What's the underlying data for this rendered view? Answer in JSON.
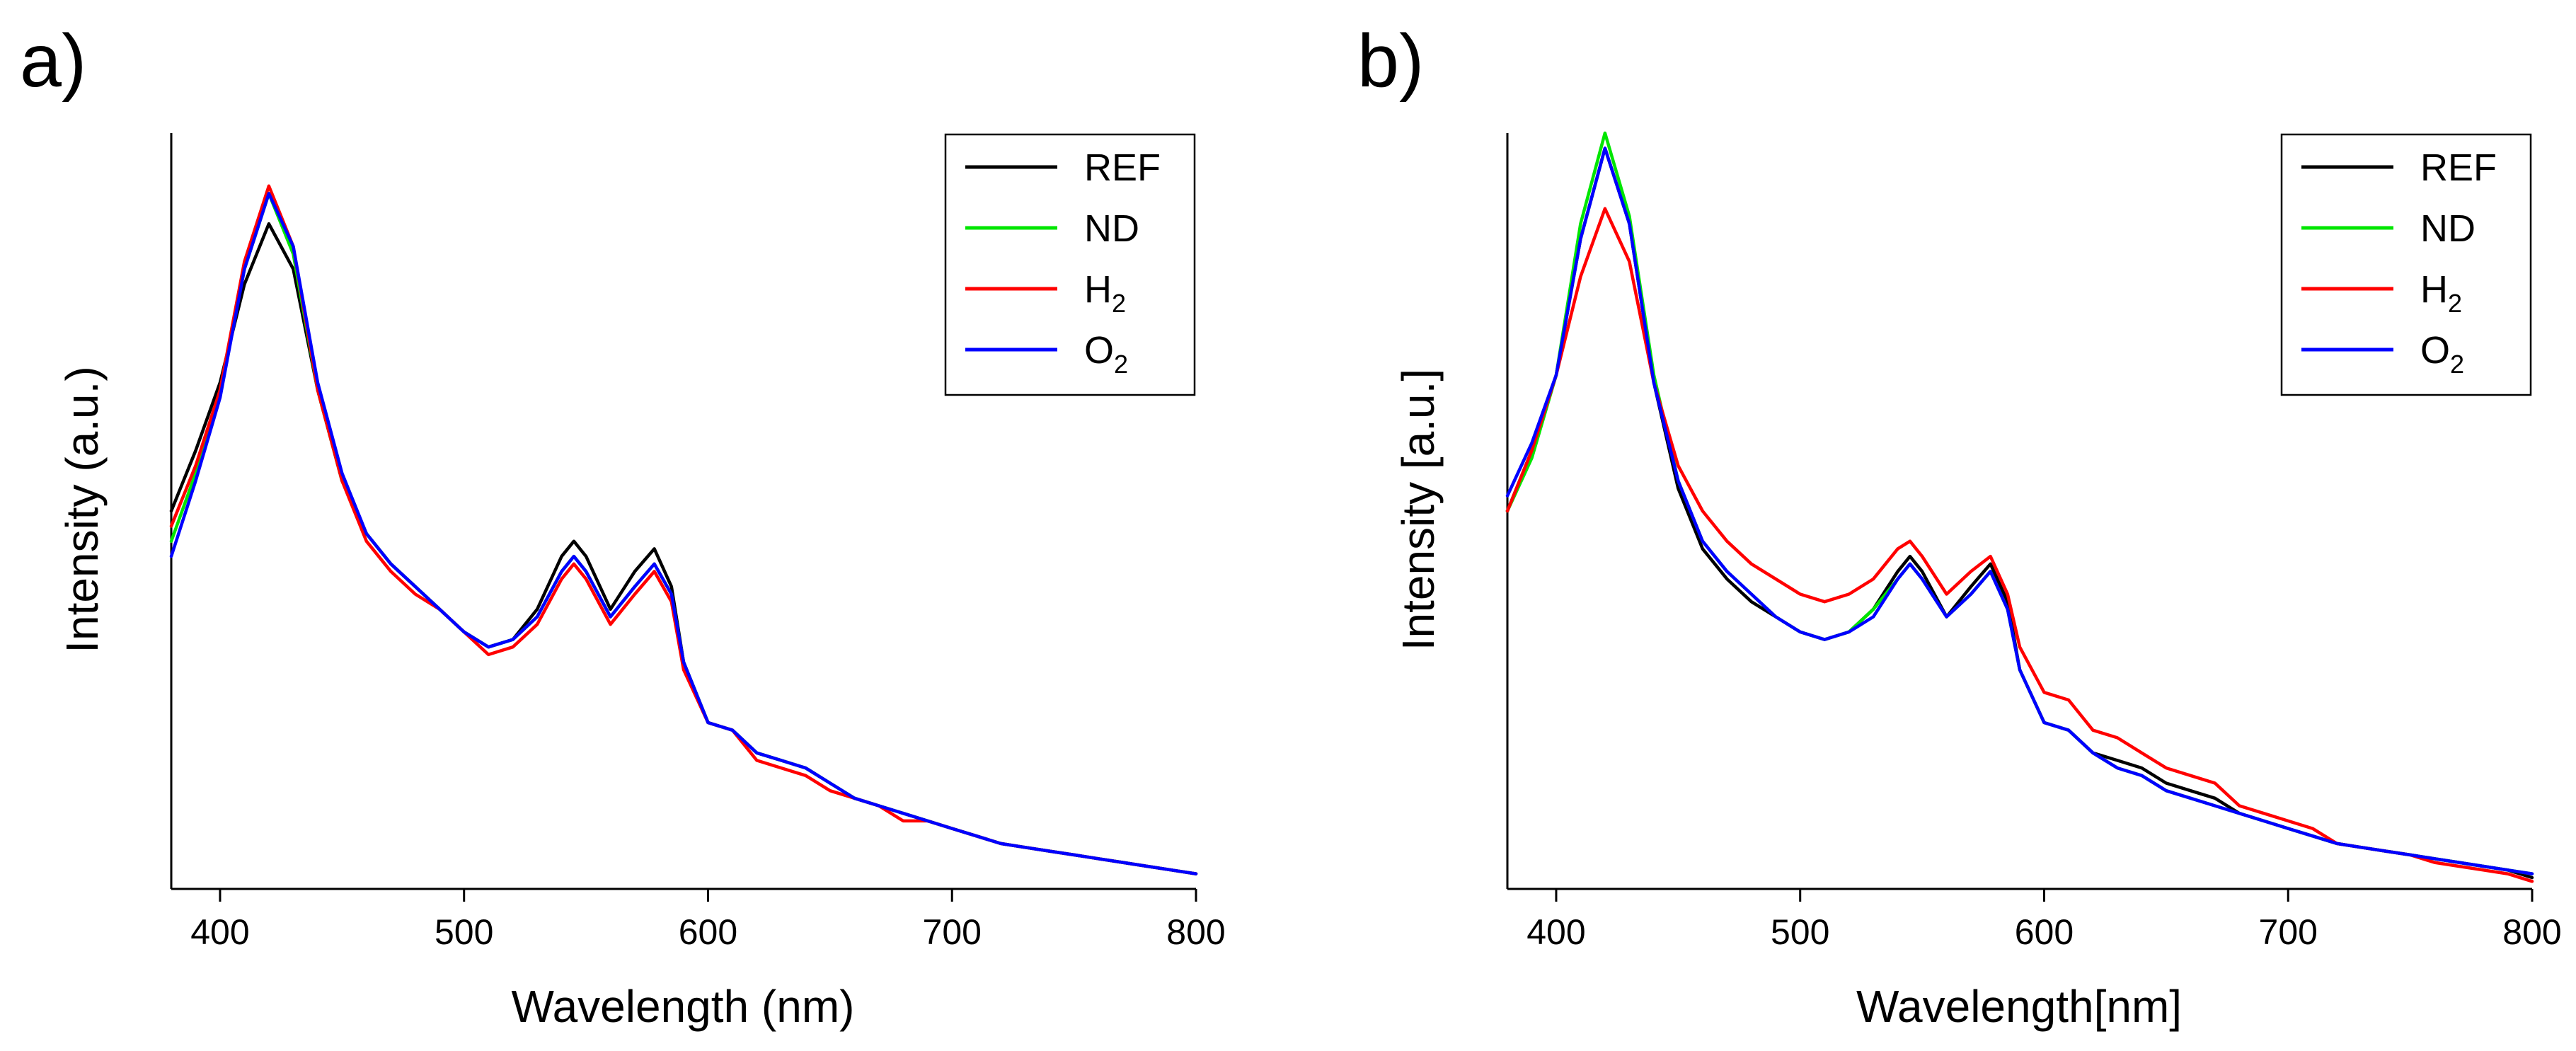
{
  "chart_data": [
    {
      "panel_label": "a)",
      "type": "line",
      "title": "",
      "xlabel": "Wavelength (nm)",
      "ylabel": "Intensity (a.u.)",
      "xlim": [
        380,
        800
      ],
      "ylim": [
        0,
        1
      ],
      "xticks": [
        400,
        500,
        600,
        700,
        800
      ],
      "legend_position": "top-right",
      "series": [
        {
          "name": "REF",
          "name_main": "REF",
          "name_sub": "",
          "color": "#000000",
          "x": [
            380,
            390,
            400,
            410,
            420,
            430,
            440,
            450,
            460,
            470,
            480,
            490,
            500,
            510,
            520,
            530,
            540,
            545,
            550,
            560,
            570,
            578,
            585,
            590,
            600,
            610,
            620,
            630,
            640,
            650,
            660,
            670,
            680,
            690,
            700,
            710,
            720,
            730,
            740,
            750,
            760,
            770,
            780,
            790,
            800
          ],
          "y": [
            0.5,
            0.58,
            0.67,
            0.8,
            0.88,
            0.82,
            0.66,
            0.54,
            0.47,
            0.43,
            0.4,
            0.37,
            0.34,
            0.32,
            0.33,
            0.37,
            0.44,
            0.46,
            0.44,
            0.37,
            0.42,
            0.45,
            0.4,
            0.3,
            0.22,
            0.21,
            0.18,
            0.17,
            0.16,
            0.14,
            0.12,
            0.11,
            0.1,
            0.09,
            0.08,
            0.07,
            0.06,
            0.055,
            0.05,
            0.045,
            0.04,
            0.035,
            0.03,
            0.025,
            0.02
          ]
        },
        {
          "name": "ND",
          "name_main": "ND",
          "name_sub": "",
          "color": "#00e600",
          "x": [
            380,
            390,
            400,
            410,
            420,
            430,
            440,
            450,
            460,
            470,
            480,
            490,
            500,
            510,
            520,
            530,
            540,
            545,
            550,
            560,
            570,
            578,
            585,
            590,
            600,
            610,
            620,
            630,
            640,
            650,
            660,
            670,
            680,
            690,
            700,
            710,
            720,
            730,
            740,
            750,
            760,
            770,
            780,
            790,
            800
          ],
          "y": [
            0.46,
            0.55,
            0.66,
            0.82,
            0.92,
            0.84,
            0.66,
            0.54,
            0.47,
            0.43,
            0.4,
            0.37,
            0.34,
            0.32,
            0.33,
            0.36,
            0.42,
            0.44,
            0.42,
            0.36,
            0.4,
            0.43,
            0.39,
            0.3,
            0.22,
            0.21,
            0.18,
            0.17,
            0.16,
            0.14,
            0.12,
            0.11,
            0.1,
            0.09,
            0.08,
            0.07,
            0.06,
            0.055,
            0.05,
            0.045,
            0.04,
            0.035,
            0.03,
            0.025,
            0.02
          ]
        },
        {
          "name": "H2",
          "name_main": "H",
          "name_sub": "2",
          "color": "#ff0000",
          "x": [
            380,
            390,
            400,
            410,
            420,
            430,
            440,
            450,
            460,
            470,
            480,
            490,
            500,
            510,
            520,
            530,
            540,
            545,
            550,
            560,
            570,
            578,
            585,
            590,
            600,
            610,
            620,
            630,
            640,
            650,
            660,
            670,
            680,
            690,
            700,
            710,
            720,
            730,
            740,
            750,
            760,
            770,
            780,
            790,
            800
          ],
          "y": [
            0.48,
            0.56,
            0.66,
            0.83,
            0.93,
            0.85,
            0.66,
            0.54,
            0.46,
            0.42,
            0.39,
            0.37,
            0.34,
            0.31,
            0.32,
            0.35,
            0.41,
            0.43,
            0.41,
            0.35,
            0.39,
            0.42,
            0.38,
            0.29,
            0.22,
            0.21,
            0.17,
            0.16,
            0.15,
            0.13,
            0.12,
            0.11,
            0.09,
            0.09,
            0.08,
            0.07,
            0.06,
            0.055,
            0.05,
            0.045,
            0.04,
            0.035,
            0.03,
            0.025,
            0.02
          ]
        },
        {
          "name": "O2",
          "name_main": "O",
          "name_sub": "2",
          "color": "#0000ff",
          "x": [
            380,
            390,
            400,
            410,
            420,
            430,
            440,
            450,
            460,
            470,
            480,
            490,
            500,
            510,
            520,
            530,
            540,
            545,
            550,
            560,
            570,
            578,
            585,
            590,
            600,
            610,
            620,
            630,
            640,
            650,
            660,
            670,
            680,
            690,
            700,
            710,
            720,
            730,
            740,
            750,
            760,
            770,
            780,
            790,
            800
          ],
          "y": [
            0.44,
            0.54,
            0.65,
            0.82,
            0.92,
            0.85,
            0.67,
            0.55,
            0.47,
            0.43,
            0.4,
            0.37,
            0.34,
            0.32,
            0.33,
            0.36,
            0.42,
            0.44,
            0.42,
            0.36,
            0.4,
            0.43,
            0.39,
            0.3,
            0.22,
            0.21,
            0.18,
            0.17,
            0.16,
            0.14,
            0.12,
            0.11,
            0.1,
            0.09,
            0.08,
            0.07,
            0.06,
            0.055,
            0.05,
            0.045,
            0.04,
            0.035,
            0.03,
            0.025,
            0.02
          ]
        }
      ]
    },
    {
      "panel_label": "b)",
      "type": "line",
      "title": "",
      "xlabel": "Wavelength[nm]",
      "ylabel": "Intensity [a.u.]",
      "xlim": [
        380,
        800
      ],
      "ylim": [
        0,
        1
      ],
      "xticks": [
        400,
        500,
        600,
        700,
        800
      ],
      "legend_position": "top-right",
      "series": [
        {
          "name": "REF",
          "name_main": "REF",
          "name_sub": "",
          "color": "#000000",
          "x": [
            380,
            390,
            400,
            410,
            420,
            430,
            440,
            450,
            460,
            470,
            480,
            490,
            500,
            510,
            520,
            530,
            540,
            545,
            550,
            560,
            570,
            578,
            585,
            590,
            600,
            610,
            620,
            630,
            640,
            650,
            660,
            670,
            680,
            690,
            700,
            710,
            720,
            730,
            740,
            750,
            760,
            770,
            780,
            790,
            800
          ],
          "y": [
            0.5,
            0.58,
            0.68,
            0.86,
            0.98,
            0.88,
            0.67,
            0.53,
            0.45,
            0.41,
            0.38,
            0.36,
            0.34,
            0.33,
            0.34,
            0.37,
            0.42,
            0.44,
            0.42,
            0.36,
            0.4,
            0.43,
            0.38,
            0.29,
            0.22,
            0.21,
            0.18,
            0.17,
            0.16,
            0.14,
            0.13,
            0.12,
            0.1,
            0.09,
            0.08,
            0.07,
            0.06,
            0.055,
            0.05,
            0.045,
            0.04,
            0.035,
            0.03,
            0.025,
            0.015
          ]
        },
        {
          "name": "ND",
          "name_main": "ND",
          "name_sub": "",
          "color": "#00e600",
          "x": [
            380,
            390,
            400,
            410,
            420,
            430,
            440,
            450,
            460,
            470,
            480,
            490,
            500,
            510,
            520,
            530,
            540,
            545,
            550,
            560,
            570,
            578,
            585,
            590,
            600,
            610,
            620,
            630,
            640,
            650,
            660,
            670,
            680,
            690,
            700,
            710,
            720,
            730,
            740,
            750,
            760,
            770,
            780,
            790,
            800
          ],
          "y": [
            0.5,
            0.57,
            0.68,
            0.88,
            1.0,
            0.89,
            0.68,
            0.54,
            0.46,
            0.42,
            0.39,
            0.36,
            0.34,
            0.33,
            0.34,
            0.37,
            0.41,
            0.43,
            0.41,
            0.36,
            0.39,
            0.42,
            0.37,
            0.29,
            0.22,
            0.21,
            0.18,
            0.16,
            0.15,
            0.13,
            0.12,
            0.11,
            0.1,
            0.09,
            0.08,
            0.07,
            0.06,
            0.055,
            0.05,
            0.045,
            0.04,
            0.035,
            0.03,
            0.025,
            0.02
          ]
        },
        {
          "name": "H2",
          "name_main": "H",
          "name_sub": "2",
          "color": "#ff0000",
          "x": [
            380,
            390,
            400,
            410,
            420,
            430,
            440,
            450,
            460,
            470,
            480,
            490,
            500,
            510,
            520,
            530,
            540,
            545,
            550,
            560,
            570,
            578,
            585,
            590,
            600,
            610,
            620,
            630,
            640,
            650,
            660,
            670,
            680,
            690,
            700,
            710,
            720,
            730,
            740,
            750,
            760,
            770,
            780,
            790,
            800
          ],
          "y": [
            0.5,
            0.58,
            0.68,
            0.81,
            0.9,
            0.83,
            0.67,
            0.56,
            0.5,
            0.46,
            0.43,
            0.41,
            0.39,
            0.38,
            0.39,
            0.41,
            0.45,
            0.46,
            0.44,
            0.39,
            0.42,
            0.44,
            0.39,
            0.32,
            0.26,
            0.25,
            0.21,
            0.2,
            0.18,
            0.16,
            0.15,
            0.14,
            0.11,
            0.1,
            0.09,
            0.08,
            0.06,
            0.055,
            0.05,
            0.045,
            0.035,
            0.03,
            0.025,
            0.02,
            0.01
          ]
        },
        {
          "name": "O2",
          "name_main": "O",
          "name_sub": "2",
          "color": "#0000ff",
          "x": [
            380,
            390,
            400,
            410,
            420,
            430,
            440,
            450,
            460,
            470,
            480,
            490,
            500,
            510,
            520,
            530,
            540,
            545,
            550,
            560,
            570,
            578,
            585,
            590,
            600,
            610,
            620,
            630,
            640,
            650,
            660,
            670,
            680,
            690,
            700,
            710,
            720,
            730,
            740,
            750,
            760,
            770,
            780,
            790,
            800
          ],
          "y": [
            0.52,
            0.59,
            0.68,
            0.86,
            0.98,
            0.88,
            0.67,
            0.54,
            0.46,
            0.42,
            0.39,
            0.36,
            0.34,
            0.33,
            0.34,
            0.36,
            0.41,
            0.43,
            0.41,
            0.36,
            0.39,
            0.42,
            0.37,
            0.29,
            0.22,
            0.21,
            0.18,
            0.16,
            0.15,
            0.13,
            0.12,
            0.11,
            0.1,
            0.09,
            0.08,
            0.07,
            0.06,
            0.055,
            0.05,
            0.045,
            0.04,
            0.035,
            0.03,
            0.025,
            0.02
          ]
        }
      ]
    }
  ]
}
